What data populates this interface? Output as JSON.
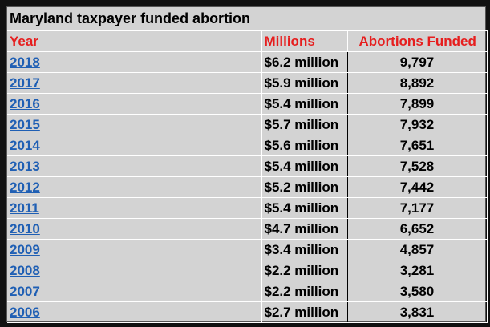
{
  "title": "Maryland taxpayer funded abortion",
  "headers": {
    "year": "Year",
    "millions": "Millions",
    "funded": "Abortions Funded"
  },
  "rows": [
    {
      "year": "2018",
      "millions": "$6.2 million",
      "funded": "9,797"
    },
    {
      "year": "2017",
      "millions": "$5.9 million",
      "funded": "8,892"
    },
    {
      "year": "2016",
      "millions": "$5.4 million",
      "funded": "7,899"
    },
    {
      "year": "2015",
      "millions": "$5.7 million",
      "funded": "7,932"
    },
    {
      "year": "2014",
      "millions": "$5.6 million",
      "funded": "7,651"
    },
    {
      "year": "2013",
      "millions": "$5.4 million",
      "funded": "7,528"
    },
    {
      "year": "2012",
      "millions": "$5.2 million",
      "funded": "7,442"
    },
    {
      "year": "2011",
      "millions": "$5.4 million",
      "funded": "7,177"
    },
    {
      "year": "2010",
      "millions": "$4.7 million",
      "funded": "6,652"
    },
    {
      "year": "2009",
      "millions": "$3.4 million",
      "funded": "4,857"
    },
    {
      "year": "2008",
      "millions": "$2.2 million",
      "funded": "3,281"
    },
    {
      "year": "2007",
      "millions": "$2.2 million",
      "funded": "3,580"
    },
    {
      "year": "2006",
      "millions": "$2.7 million",
      "funded": "3,831"
    }
  ],
  "colors": {
    "header_text": "#e61e1e",
    "link": "#1f5fb4",
    "background": "#d3d3d3"
  }
}
